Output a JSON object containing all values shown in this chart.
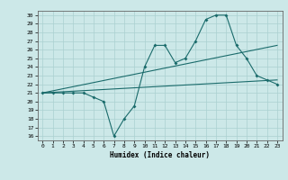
{
  "title": "",
  "xlabel": "Humidex (Indice chaleur)",
  "ylabel": "",
  "bg_color": "#cce8e8",
  "grid_color": "#aad0d0",
  "line_color": "#1a6b6b",
  "xlim": [
    -0.5,
    23.5
  ],
  "ylim": [
    15.5,
    30.5
  ],
  "yticks": [
    16,
    17,
    18,
    19,
    20,
    21,
    22,
    23,
    24,
    25,
    26,
    27,
    28,
    29,
    30
  ],
  "xticks": [
    0,
    1,
    2,
    3,
    4,
    5,
    6,
    7,
    8,
    9,
    10,
    11,
    12,
    13,
    14,
    15,
    16,
    17,
    18,
    19,
    20,
    21,
    22,
    23
  ],
  "series1": {
    "x": [
      0,
      1,
      2,
      3,
      4,
      5,
      6,
      7,
      8,
      9,
      10,
      11,
      12,
      13,
      14,
      15,
      16,
      17,
      18,
      19,
      20,
      21,
      22,
      23
    ],
    "y": [
      21,
      21,
      21,
      21,
      21,
      20.5,
      20,
      16,
      18,
      19.5,
      24,
      26.5,
      26.5,
      24.5,
      25,
      27,
      29.5,
      30,
      30,
      26.5,
      25,
      23,
      22.5,
      22
    ]
  },
  "series2": {
    "x": [
      0,
      23
    ],
    "y": [
      21,
      22.5
    ]
  },
  "series3": {
    "x": [
      0,
      23
    ],
    "y": [
      21,
      26.5
    ]
  }
}
